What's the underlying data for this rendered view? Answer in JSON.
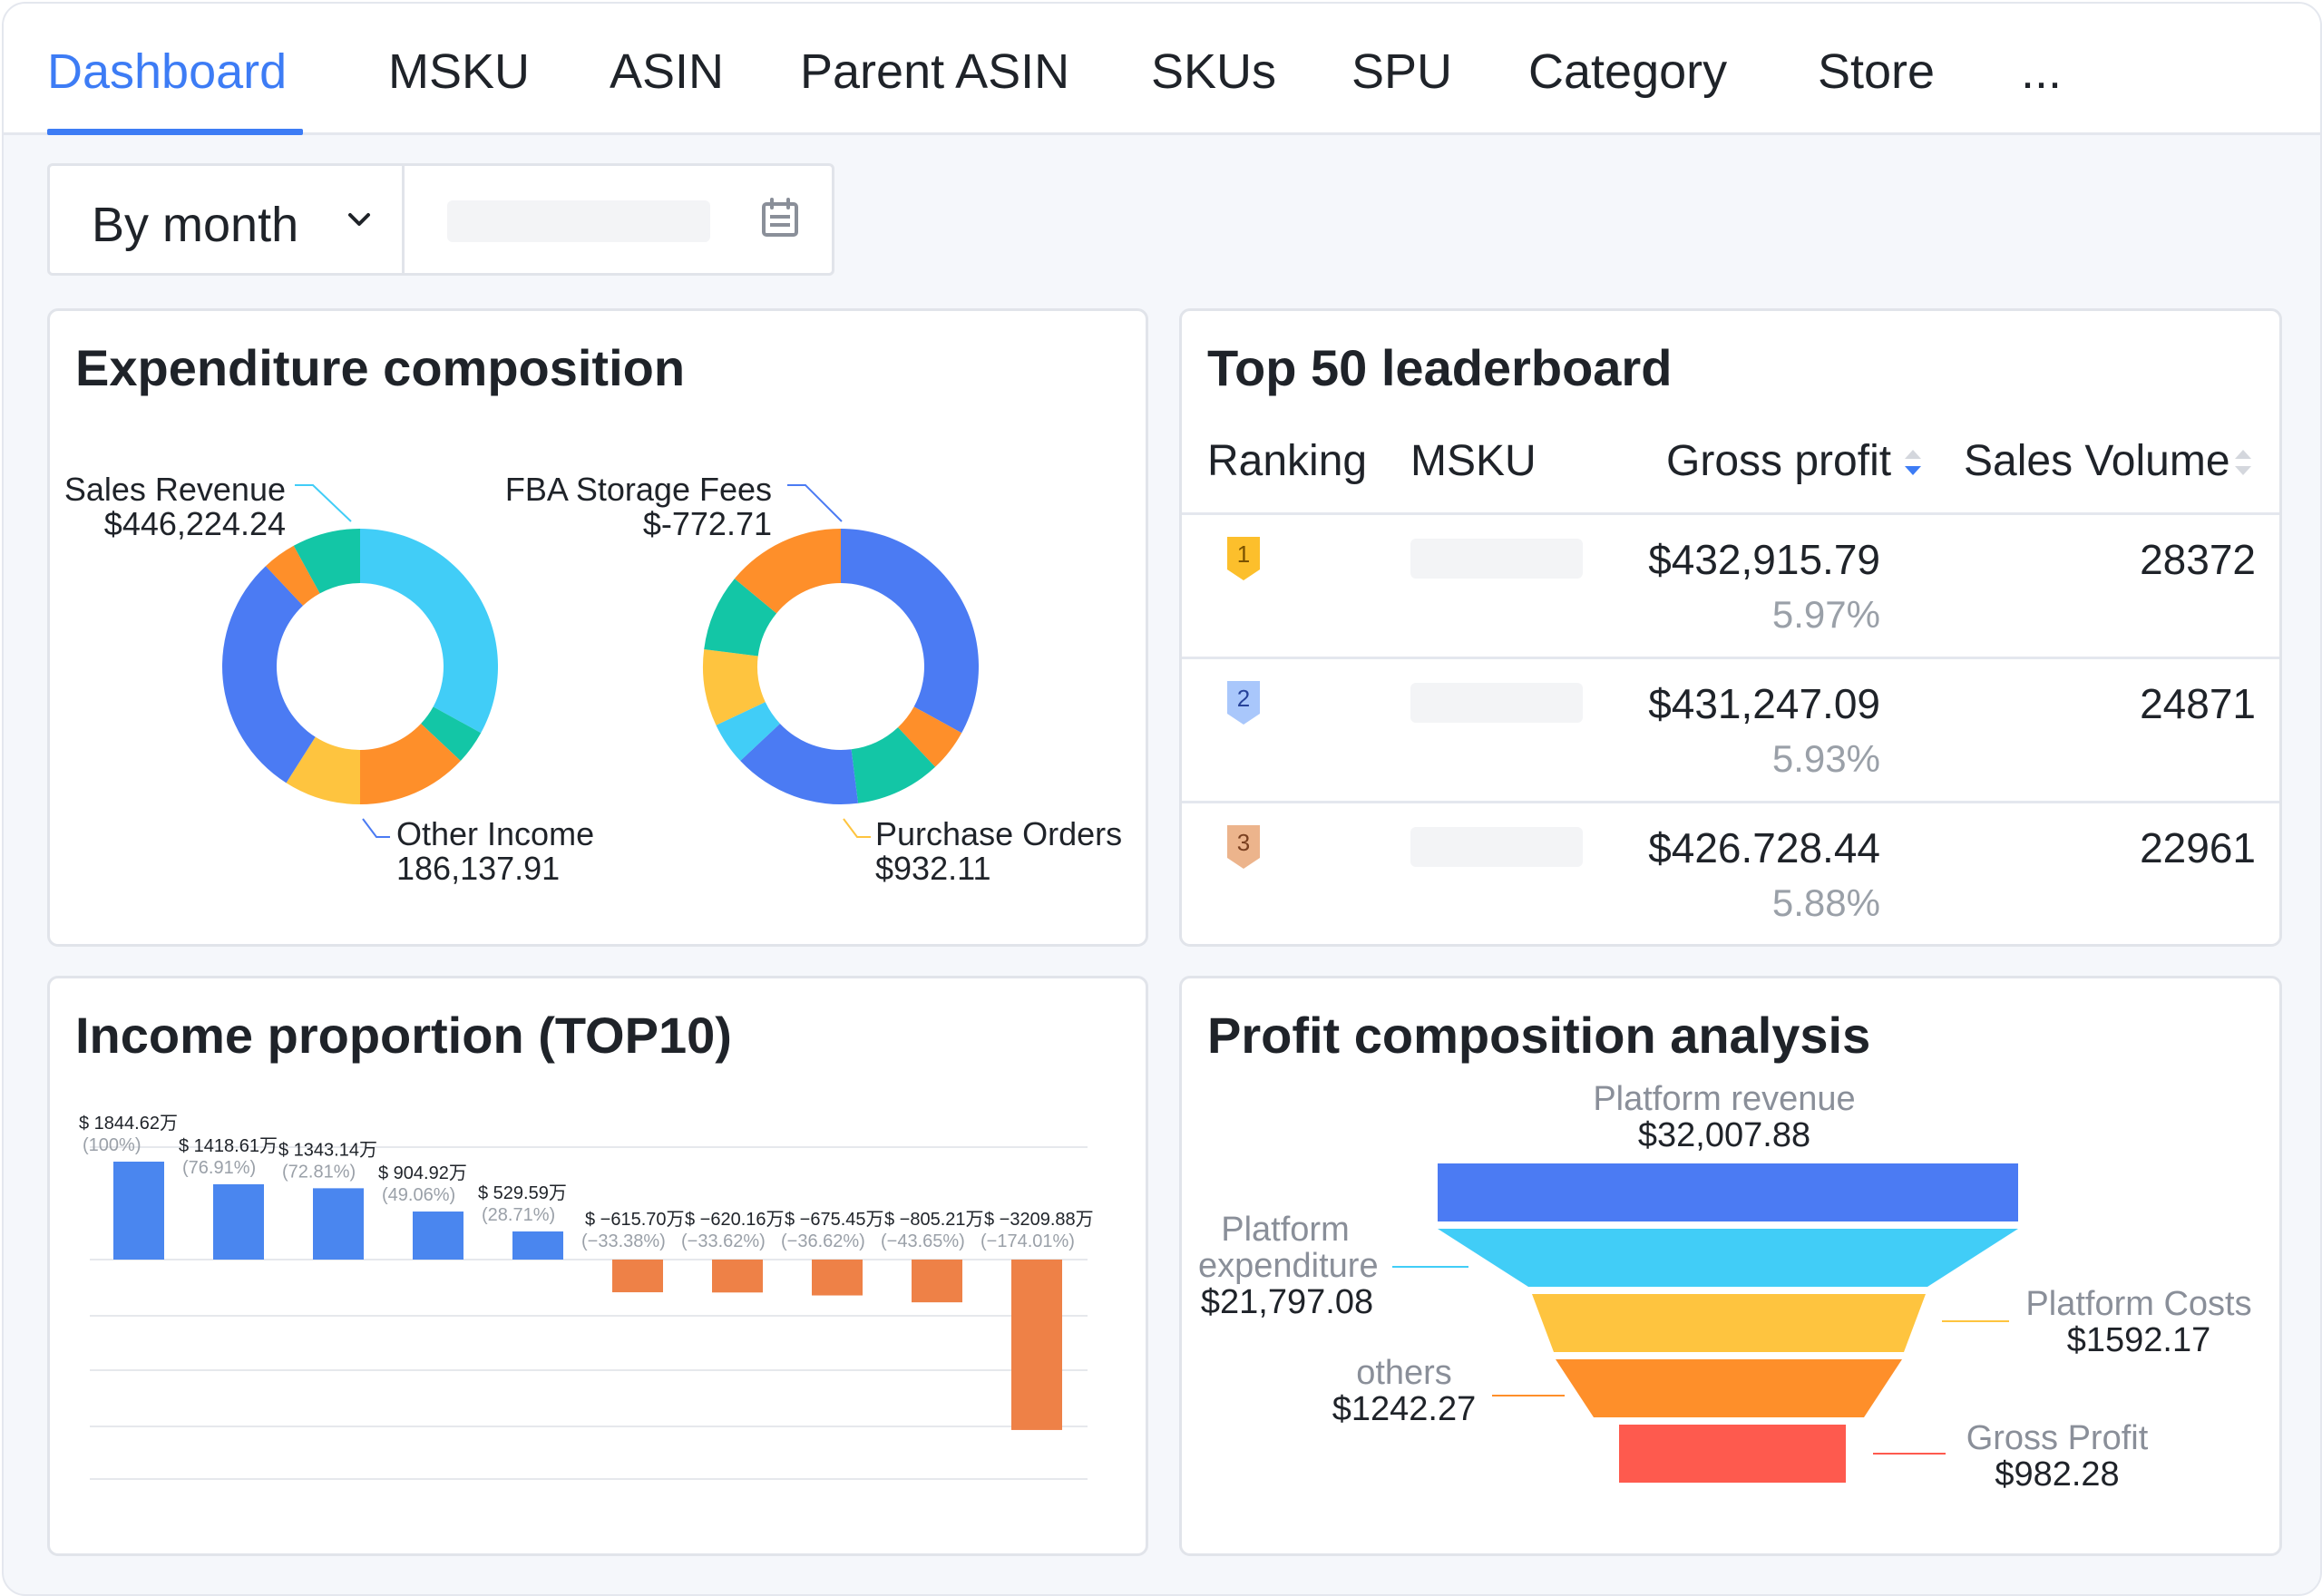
{
  "tabs": [
    {
      "label": "Dashboard",
      "active": true
    },
    {
      "label": "MSKU"
    },
    {
      "label": "ASIN"
    },
    {
      "label": "Parent ASIN"
    },
    {
      "label": "SKUs"
    },
    {
      "label": "SPU"
    },
    {
      "label": "Category"
    },
    {
      "label": "Store"
    },
    {
      "label": "..."
    }
  ],
  "filters": {
    "period_label": "By month",
    "date_value": ""
  },
  "colors": {
    "accent": "#3d7cf5",
    "positive_bar": "#4a86ef",
    "negative_bar": "#ee8147"
  },
  "expenditure": {
    "title": "Expenditure composition",
    "donut1": {
      "label_top": "Sales Revenue",
      "value_top": "$446,224.24",
      "label_bottom": "Other Income",
      "value_bottom": "186,137.91",
      "segments": [
        {
          "value": 33,
          "color": "#41cdf7"
        },
        {
          "value": 4,
          "color": "#13c6a6"
        },
        {
          "value": 13,
          "color": "#fe8f2a"
        },
        {
          "value": 9,
          "color": "#fec43f"
        },
        {
          "value": 29,
          "color": "#4b7bf3"
        },
        {
          "value": 4,
          "color": "#fe8f2a"
        },
        {
          "value": 8,
          "color": "#13c6a6"
        }
      ]
    },
    "donut2": {
      "label_top": "FBA Storage Fees",
      "value_top": "$-772.71",
      "label_bottom": "Purchase Orders",
      "value_bottom": "$932.11",
      "segments": [
        {
          "value": 33,
          "color": "#4b7bf3"
        },
        {
          "value": 5,
          "color": "#fe8f2a"
        },
        {
          "value": 10,
          "color": "#13c6a6"
        },
        {
          "value": 15,
          "color": "#4b7bf3"
        },
        {
          "value": 5,
          "color": "#41cdf7"
        },
        {
          "value": 9,
          "color": "#fec43f"
        },
        {
          "value": 9,
          "color": "#13c6a6"
        },
        {
          "value": 14,
          "color": "#fe8f2a"
        }
      ]
    }
  },
  "leaderboard": {
    "title": "Top 50 leaderboard",
    "headers": {
      "ranking": "Ranking",
      "msku": "MSKU",
      "gross_profit": "Gross profit",
      "sales_volume": "Sales Volume"
    },
    "rows": [
      {
        "rank": "1",
        "gross_profit": "$432,915.79",
        "percent": "5.97%",
        "volume": "28372",
        "badge_color": "#fcbf2c",
        "text_color": "#7a5200"
      },
      {
        "rank": "2",
        "gross_profit": "$431,247.09",
        "percent": "5.93%",
        "volume": "24871",
        "badge_color": "#a9c7fb",
        "text_color": "#27439a"
      },
      {
        "rank": "3",
        "gross_profit": "$426.728.44",
        "percent": "5.88%",
        "volume": "22961",
        "badge_color": "#ecb48c",
        "text_color": "#7a4020"
      }
    ]
  },
  "income": {
    "title": "Income proportion (TOP10)",
    "chart_data": {
      "type": "bar",
      "ylim": [
        -210,
        110
      ],
      "grid": true,
      "values": [
        100,
        76.91,
        72.81,
        49.06,
        28.71,
        -33.38,
        -33.62,
        -36.62,
        -43.65,
        -174.01
      ],
      "labels": [
        {
          "amount": "$ 1844.62万",
          "pct": "(100%)"
        },
        {
          "amount": "$ 1418.61万",
          "pct": "(76.91%)"
        },
        {
          "amount": "$ 1343.14万",
          "pct": "(72.81%)"
        },
        {
          "amount": "$ 904.92万",
          "pct": "(49.06%)"
        },
        {
          "amount": "$ 529.59万",
          "pct": "(28.71%)"
        },
        {
          "amount": "$ −615.70万",
          "pct": "(−33.38%)"
        },
        {
          "amount": "$ −620.16万",
          "pct": "(−33.62%)"
        },
        {
          "amount": "$ −675.45万",
          "pct": "(−36.62%)"
        },
        {
          "amount": "$ −805.21万",
          "pct": "(−43.65%)"
        },
        {
          "amount": "$ −3209.88万",
          "pct": "(−174.01%)"
        }
      ]
    }
  },
  "profit": {
    "title": "Profit composition analysis",
    "funnel": [
      {
        "label": "Platform revenue",
        "value": "$32,007.88",
        "color": "#4b7bf3"
      },
      {
        "label": "Platform expenditure",
        "value": "$21,797.08",
        "color": "#41cdf7"
      },
      {
        "label": "Platform Costs",
        "value": "$1592.17",
        "color": "#fec43f"
      },
      {
        "label": "others",
        "value": "$1242.27",
        "color": "#fe8f2a"
      },
      {
        "label": "Gross Profit",
        "value": "$982.28",
        "color": "#fe5a4e"
      }
    ],
    "expenditure_line1": "Platform",
    "expenditure_line2": "expenditure"
  }
}
